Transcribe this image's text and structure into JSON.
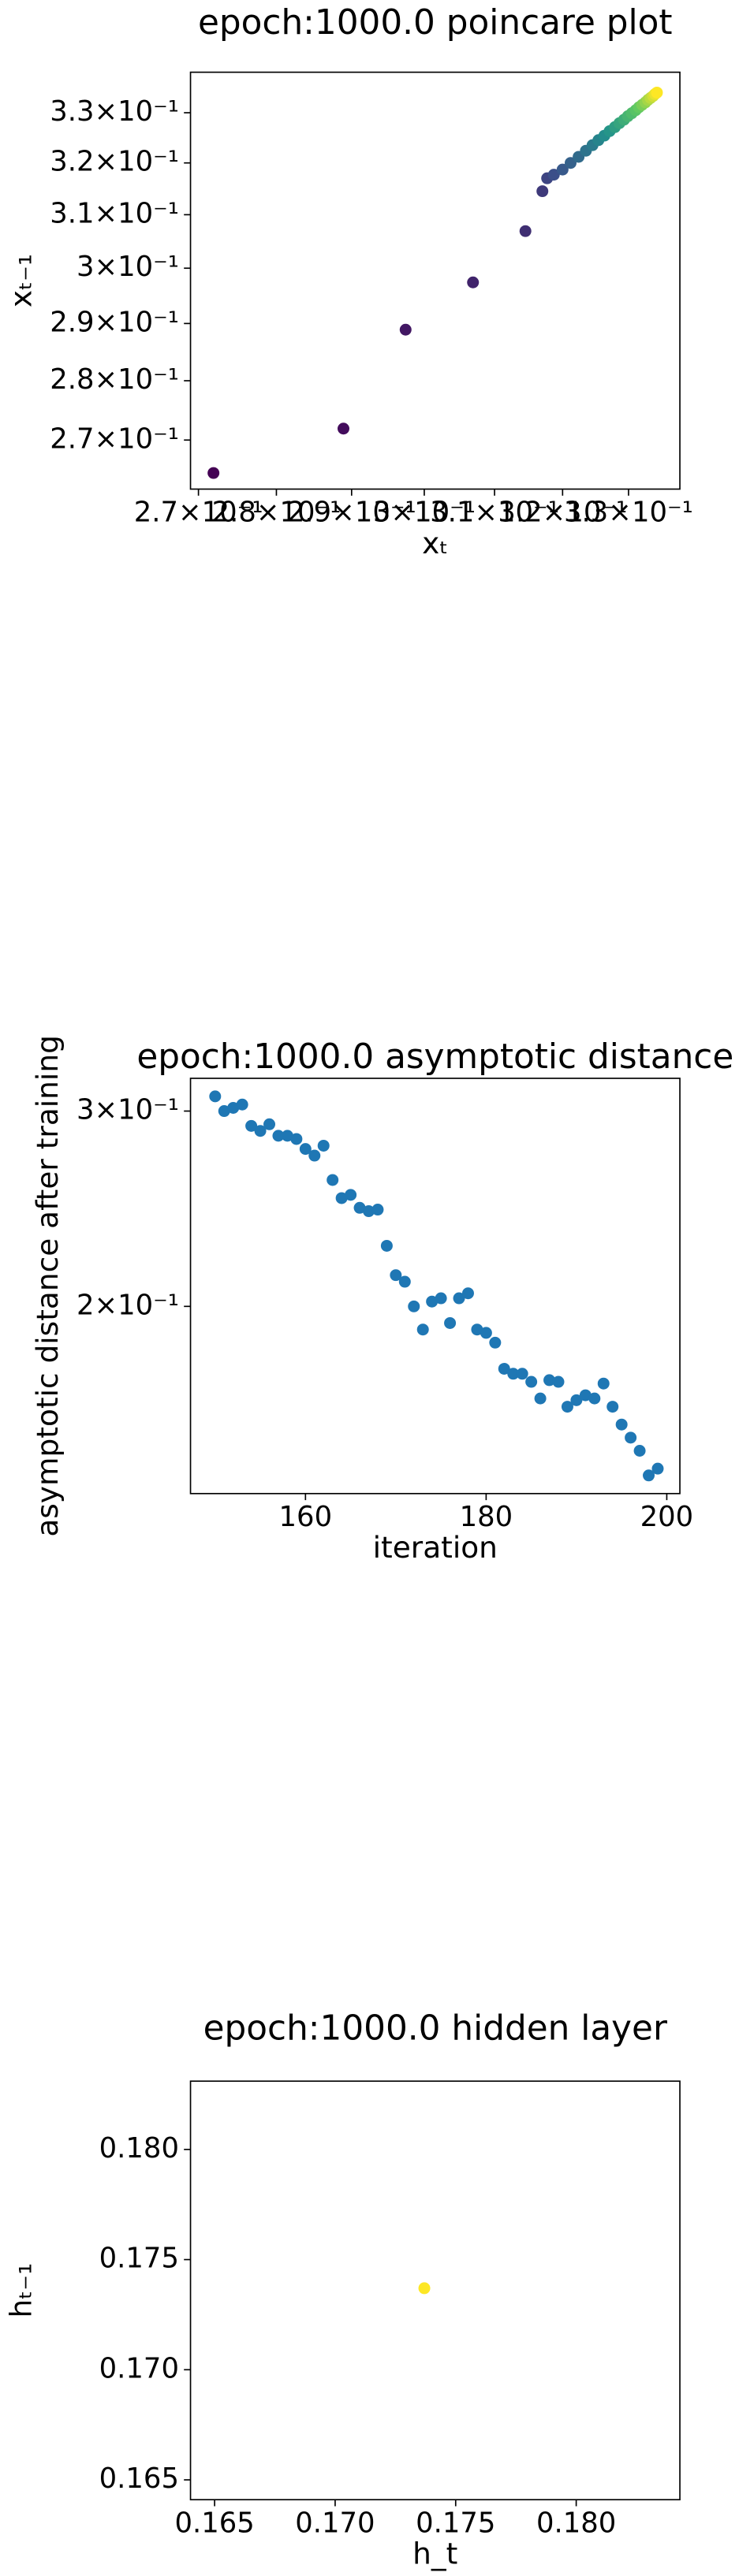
{
  "chart_data": [
    {
      "type": "scatter",
      "title": "epoch:1000.0 poincare plot",
      "xlabel": "xₜ",
      "ylabel": "xₜ₋₁",
      "xscale": "log",
      "yscale": "log",
      "cmap": "viridis",
      "x": [
        0.2719,
        0.2889,
        0.2974,
        0.3069,
        0.3145,
        0.317,
        0.3177,
        0.3187,
        0.32,
        0.3212,
        0.3224,
        0.3235,
        0.3245,
        0.3254,
        0.3263,
        0.3271,
        0.3279,
        0.3286,
        0.3293,
        0.3299,
        0.3305,
        0.3311,
        0.3316,
        0.3321,
        0.3326,
        0.333,
        0.3334,
        0.3338,
        0.3341,
        0.3344
      ],
      "values": [
        0.2646,
        0.2719,
        0.2889,
        0.2974,
        0.3069,
        0.3145,
        0.317,
        0.3177,
        0.3187,
        0.32,
        0.3212,
        0.3224,
        0.3235,
        0.3245,
        0.3254,
        0.3263,
        0.3271,
        0.3279,
        0.3286,
        0.3293,
        0.3299,
        0.3305,
        0.3311,
        0.3316,
        0.3321,
        0.3326,
        0.333,
        0.3334,
        0.3338,
        0.3341
      ],
      "xlim": [
        0.269,
        0.338
      ],
      "ylim": [
        0.262,
        0.3383
      ],
      "xticks": [
        {
          "value": 0.27,
          "label": "2.7×10⁻¹"
        },
        {
          "value": 0.28,
          "label": "2.8×10⁻¹"
        },
        {
          "value": 0.29,
          "label": "2.9×10⁻¹"
        },
        {
          "value": 0.3,
          "label": "3×10⁻¹"
        },
        {
          "value": 0.31,
          "label": "3.1×10⁻¹"
        },
        {
          "value": 0.32,
          "label": "3.2×10⁻¹"
        },
        {
          "value": 0.33,
          "label": "3.3×10⁻¹"
        }
      ],
      "yticks": [
        {
          "value": 0.27,
          "label": "2.7×10⁻¹"
        },
        {
          "value": 0.28,
          "label": "2.8×10⁻¹"
        },
        {
          "value": 0.29,
          "label": "2.9×10⁻¹"
        },
        {
          "value": 0.3,
          "label": "3×10⁻¹"
        },
        {
          "value": 0.31,
          "label": "3.1×10⁻¹"
        },
        {
          "value": 0.32,
          "label": "3.2×10⁻¹"
        },
        {
          "value": 0.33,
          "label": "3.3×10⁻¹"
        }
      ]
    },
    {
      "type": "scatter",
      "title": "epoch:1000.0 asymptotic distance",
      "xlabel": "iteration",
      "ylabel": "asymptotic distance after training",
      "yscale": "log",
      "color": "#1f77b4",
      "x": [
        150,
        151,
        152,
        153,
        154,
        155,
        156,
        157,
        158,
        159,
        160,
        161,
        162,
        163,
        164,
        165,
        166,
        167,
        168,
        169,
        170,
        171,
        172,
        173,
        174,
        175,
        176,
        177,
        178,
        179,
        180,
        181,
        182,
        183,
        184,
        185,
        186,
        187,
        188,
        189,
        190,
        191,
        192,
        193,
        194,
        195,
        196,
        197,
        198,
        199
      ],
      "values": [
        0.3093,
        0.3,
        0.302,
        0.3041,
        0.2909,
        0.2879,
        0.2919,
        0.285,
        0.285,
        0.2831,
        0.2773,
        0.2735,
        0.2792,
        0.26,
        0.2504,
        0.2521,
        0.2454,
        0.2437,
        0.2445,
        0.2268,
        0.2134,
        0.2105,
        0.2,
        0.1906,
        0.202,
        0.2034,
        0.1932,
        0.2034,
        0.2055,
        0.1906,
        0.1893,
        0.1855,
        0.1757,
        0.1739,
        0.1739,
        0.171,
        0.1652,
        0.1716,
        0.171,
        0.1624,
        0.1646,
        0.1663,
        0.1652,
        0.1704,
        0.1624,
        0.1565,
        0.1523,
        0.1482,
        0.1408,
        0.1428
      ],
      "xlim": [
        147.27,
        201.45
      ],
      "ylim": [
        0.1356,
        0.3211
      ],
      "xticks": [
        160,
        180,
        200
      ],
      "yticks": [
        {
          "value": 0.3,
          "label": "3×10⁻¹"
        },
        {
          "value": 0.2,
          "label": "2×10⁻¹"
        }
      ]
    },
    {
      "type": "scatter",
      "title": "epoch:1000.0 hidden layer",
      "xlabel": "h_t",
      "ylabel": "hₜ₋₁",
      "cmap": "viridis",
      "x": [
        0.1737
      ],
      "values": [
        0.1737
      ],
      "xlim": [
        0.164,
        0.1843
      ],
      "ylim": [
        0.1641,
        0.1831
      ],
      "xticks": [
        0.165,
        {
          "value": 0.17,
          "label": "0.170"
        },
        0.175,
        {
          "value": 0.18,
          "label": "0.180"
        }
      ],
      "yticks": [
        0.165,
        {
          "value": 0.17,
          "label": "0.170"
        },
        0.175,
        {
          "value": 0.18,
          "label": "0.180"
        }
      ]
    }
  ]
}
